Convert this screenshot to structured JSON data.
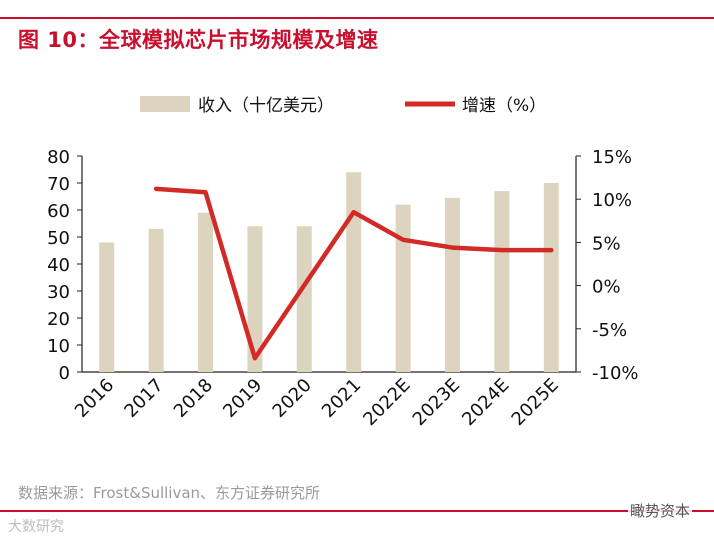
{
  "figure_title": "图 10：全球模拟芯片市场规模及增速",
  "source": "数据来源：Frost&Sullivan、东方证券研究所",
  "watermark_right": "瞰势资本",
  "watermark_left": "大数研究",
  "colors": {
    "bar": "#ddd4bf",
    "line": "#d22a26",
    "accent": "#c8102e"
  },
  "chart_data": {
    "type": "bar",
    "categories": [
      "2016",
      "2017",
      "2018",
      "2019",
      "2020",
      "2021",
      "2022E",
      "2023E",
      "2024E",
      "2025E"
    ],
    "series": [
      {
        "name": "收入（十亿美元）",
        "type": "bar",
        "axis": "left",
        "values": [
          48,
          53,
          59,
          54,
          54,
          74,
          62,
          64.5,
          67,
          70
        ]
      },
      {
        "name": "增速（%）",
        "type": "line",
        "axis": "right",
        "values": [
          null,
          11.2,
          10.8,
          -8.4,
          null,
          8.5,
          5.3,
          4.4,
          4.1,
          4.1
        ]
      }
    ],
    "y_left": {
      "min": 0,
      "max": 80,
      "ticks": [
        0,
        10,
        20,
        30,
        40,
        50,
        60,
        70,
        80
      ]
    },
    "y_right": {
      "min": -10,
      "max": 15,
      "ticks": [
        "15%",
        "10%",
        "5%",
        "0%",
        "-5%",
        "-10%"
      ]
    },
    "legend": {
      "position": "top",
      "items": [
        "收入（十亿美元）",
        "增速（%）"
      ]
    }
  }
}
